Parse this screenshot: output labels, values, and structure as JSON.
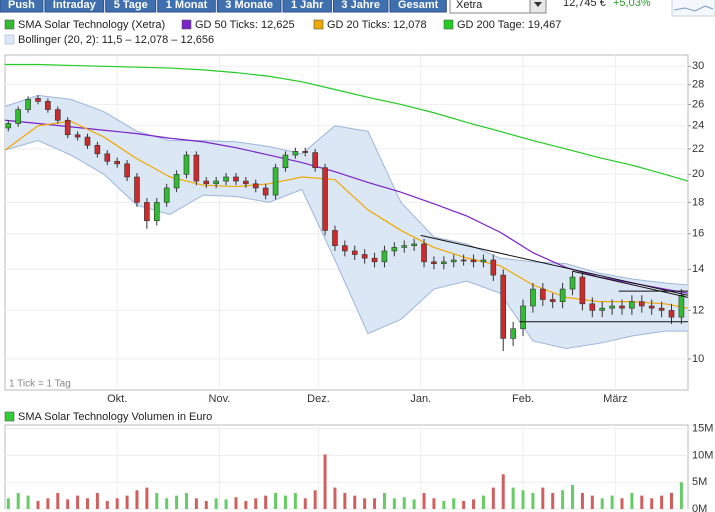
{
  "toolbar": {
    "buttons": [
      "Push",
      "Intraday",
      "5 Tage",
      "1 Monat",
      "3 Monate",
      "1 Jahr",
      "3 Jahre",
      "Gesamt"
    ],
    "exchange": "Xetra",
    "price": "12,745 €",
    "change": "+5,03%"
  },
  "chart_data": [
    {
      "type": "candlestick",
      "name": "SMA Solar Technology (Xetra)",
      "color": "#33bb33",
      "up_color": "#33bb33",
      "down_color": "#cc2b2b",
      "note": "1 Tick = 1 Tag",
      "x": [
        -33,
        -30,
        -27,
        -24,
        -21,
        -18,
        -15,
        -12,
        -9,
        -6,
        -3,
        0,
        3,
        6,
        9,
        12,
        15,
        18,
        21,
        24,
        27,
        30,
        33,
        36,
        39,
        42,
        45,
        48,
        51,
        54,
        57,
        60,
        63,
        66,
        69,
        72,
        75,
        78,
        81,
        84,
        87,
        90,
        93,
        96,
        99,
        102,
        105,
        108,
        111,
        114,
        117,
        120,
        123,
        126,
        129,
        132,
        135,
        138,
        141,
        144,
        147,
        150,
        153,
        156,
        159,
        162,
        165,
        168,
        171
      ],
      "open": [
        23.8,
        24.2,
        25.5,
        26.6,
        26.3,
        25.5,
        24.5,
        23.2,
        23,
        22.3,
        21.6,
        21,
        20.8,
        19.8,
        18,
        16.8,
        18,
        19,
        20,
        21.5,
        19.5,
        19.3,
        19.5,
        19.8,
        19.5,
        19.3,
        19,
        18.5,
        20.5,
        21.5,
        21.8,
        21.7,
        20.5,
        16.2,
        15.3,
        15,
        14.8,
        14.6,
        14.4,
        15,
        15.2,
        15.3,
        15.4,
        14.4,
        14.3,
        14.4,
        14.5,
        14.5,
        14.4,
        14.5,
        13.7,
        10.8,
        11.2,
        12.2,
        13,
        12.5,
        12.4,
        13,
        13.6,
        12.3,
        12,
        12.1,
        12.2,
        12.1,
        12.4,
        12.2,
        12.1,
        12,
        11.7
      ],
      "high": [
        24.5,
        25.8,
        26.8,
        26.9,
        26.6,
        25.8,
        24.8,
        23.5,
        23.3,
        22.6,
        21.9,
        21.3,
        21.1,
        20.1,
        18.3,
        18.3,
        19.3,
        20.3,
        21.8,
        21.8,
        19.8,
        19.8,
        20.1,
        20.1,
        19.8,
        19.6,
        19.3,
        20.8,
        21.8,
        22.1,
        22.1,
        22,
        20.8,
        16.5,
        15.6,
        15.3,
        15.1,
        14.9,
        15.3,
        15.5,
        15.6,
        15.7,
        15.7,
        14.7,
        14.7,
        14.8,
        14.8,
        14.8,
        14.8,
        14.8,
        14,
        11.5,
        12.5,
        13.3,
        13.3,
        12.8,
        13.3,
        13.9,
        13.9,
        12.6,
        12.4,
        12.5,
        12.5,
        12.7,
        12.7,
        12.5,
        12.4,
        12.3,
        13
      ],
      "low": [
        23.5,
        23.9,
        25.2,
        26,
        25.2,
        24.2,
        22.9,
        22.7,
        22,
        21.3,
        20.7,
        20.5,
        19.5,
        17.7,
        16.3,
        16.5,
        17.7,
        18.7,
        19.7,
        19.2,
        19,
        19,
        19.2,
        19.2,
        19,
        18.7,
        18.2,
        18.2,
        20.2,
        21.2,
        21.4,
        20.2,
        15.9,
        15,
        14.7,
        14.5,
        14.3,
        14.1,
        14.1,
        14.7,
        14.9,
        15,
        14.1,
        14,
        14,
        14.1,
        14.2,
        14.1,
        14.1,
        13.4,
        10.3,
        10.5,
        10.9,
        11.9,
        12.2,
        12.1,
        12.1,
        12.7,
        12,
        11.7,
        11.7,
        11.8,
        11.8,
        11.8,
        11.9,
        11.8,
        11.7,
        11.4,
        11.4
      ],
      "close": [
        24.2,
        25.5,
        26.5,
        26.3,
        25.5,
        24.5,
        23.2,
        23,
        22.3,
        21.6,
        21,
        20.8,
        19.8,
        18,
        16.8,
        18,
        19,
        20,
        21.5,
        19.5,
        19.3,
        19.5,
        19.8,
        19.5,
        19.3,
        19,
        18.5,
        20.5,
        21.5,
        21.8,
        21.7,
        20.5,
        16.2,
        15.3,
        15,
        14.8,
        14.6,
        14.4,
        15,
        15.2,
        15.3,
        15.4,
        14.4,
        14.3,
        14.4,
        14.5,
        14.5,
        14.4,
        14.5,
        13.7,
        10.8,
        11.2,
        12.2,
        13,
        12.5,
        12.4,
        13,
        13.6,
        12.3,
        12,
        12.1,
        12.2,
        12.1,
        12.4,
        12.2,
        12.1,
        12,
        11.7,
        12.7
      ],
      "band": {
        "name": "Bollinger (20, 2): 11,5 – 12,078 – 12,656",
        "color": "#dce7f5",
        "line_color": "#9db6da",
        "x": [
          -34,
          -24,
          -14,
          -4,
          6,
          16,
          26,
          36,
          46,
          56,
          66,
          76,
          86,
          96,
          106,
          116,
          126,
          136,
          146,
          156,
          166,
          173
        ],
        "upper": [
          25.8,
          26.9,
          26.5,
          25.3,
          23.5,
          22.7,
          22.7,
          22.6,
          22.2,
          21.6,
          24,
          23.5,
          18,
          15.8,
          15.4,
          14.6,
          14.4,
          14.3,
          13.8,
          13.5,
          13.3,
          13.2
        ],
        "lower": [
          21.9,
          22.7,
          21.5,
          20,
          17.8,
          17.2,
          18.5,
          18.4,
          18,
          18.9,
          14.5,
          11,
          11.6,
          13,
          13.4,
          12.8,
          10.7,
          10.4,
          10.6,
          10.9,
          11.1,
          11.1
        ]
      },
      "lines": [
        {
          "name": "GD 50 Ticks: 12,625",
          "color": "#7a22cc",
          "x": [
            -34,
            -24,
            -14,
            -4,
            6,
            16,
            26,
            36,
            46,
            56,
            66,
            76,
            86,
            96,
            106,
            116,
            126,
            136,
            146,
            156,
            166,
            173
          ],
          "values": [
            24.5,
            24.2,
            23.9,
            23.6,
            23.3,
            22.9,
            22.6,
            22.1,
            21.5,
            20.9,
            20.2,
            19.4,
            18.7,
            17.9,
            17.1,
            16.1,
            14.9,
            14.1,
            13.6,
            13.3,
            13,
            12.8
          ]
        },
        {
          "name": "GD 20 Ticks: 12,078",
          "color": "#f0a800",
          "x": [
            -34,
            -24,
            -14,
            -4,
            6,
            16,
            26,
            36,
            46,
            56,
            66,
            76,
            86,
            96,
            106,
            116,
            126,
            136,
            146,
            156,
            166,
            173
          ],
          "values": [
            21.9,
            24,
            24.4,
            23,
            21.2,
            19.8,
            19.2,
            19.1,
            19.3,
            19.8,
            19.6,
            17.5,
            16.2,
            15.2,
            14.6,
            14.2,
            13.2,
            12.6,
            12.4,
            12.4,
            12.3,
            12.1
          ]
        },
        {
          "name": "GD 200 Tage: 19,467",
          "color": "#22cc22",
          "x": [
            -34,
            -24,
            -14,
            -4,
            6,
            16,
            26,
            36,
            46,
            56,
            66,
            76,
            86,
            96,
            106,
            116,
            126,
            136,
            146,
            156,
            166,
            173
          ],
          "values": [
            30.2,
            30.2,
            30.1,
            30,
            29.9,
            29.8,
            29.6,
            29.3,
            28.9,
            28.3,
            27.5,
            26.7,
            26,
            25.2,
            24.3,
            23.5,
            22.7,
            22,
            21.3,
            20.7,
            20,
            19.5
          ]
        }
      ],
      "trendlines": [
        {
          "x": [
            92,
            173
          ],
          "values": [
            15.9,
            12.7
          ]
        },
        {
          "x": [
            138,
            173
          ],
          "values": [
            13.9,
            12.6
          ]
        },
        {
          "x": [
            122,
            173
          ],
          "values": [
            11.5,
            11.5
          ]
        },
        {
          "x": [
            152,
            173
          ],
          "values": [
            12.9,
            12.9
          ]
        }
      ],
      "xlim": [
        -34,
        173
      ],
      "xticks": [
        {
          "value": 0,
          "label": "Okt."
        },
        {
          "value": 31,
          "label": "Nov."
        },
        {
          "value": 61,
          "label": "Dez."
        },
        {
          "value": 92,
          "label": "Jan."
        },
        {
          "value": 123,
          "label": "Feb."
        },
        {
          "value": 151,
          "label": "März"
        }
      ],
      "ylim": [
        8.9,
        31.3
      ],
      "log": true,
      "grid": true,
      "yticks": [
        10,
        12,
        14,
        16,
        18,
        20,
        22,
        24,
        26,
        28,
        30
      ]
    },
    {
      "type": "bar",
      "title": "SMA Solar Technology Volumen in Euro",
      "color": "#3c3",
      "up_color": "#66cc66",
      "down_color": "#d06060",
      "x": [
        -33,
        -30,
        -27,
        -24,
        -21,
        -18,
        -15,
        -12,
        -9,
        -6,
        -3,
        0,
        3,
        6,
        9,
        12,
        15,
        18,
        21,
        24,
        27,
        30,
        33,
        36,
        39,
        42,
        45,
        48,
        51,
        54,
        57,
        60,
        63,
        66,
        69,
        72,
        75,
        78,
        81,
        84,
        87,
        90,
        93,
        96,
        99,
        102,
        105,
        108,
        111,
        114,
        117,
        120,
        123,
        126,
        129,
        132,
        135,
        138,
        141,
        144,
        147,
        150,
        153,
        156,
        159,
        162,
        165,
        168,
        171
      ],
      "values": [
        2,
        3,
        2.5,
        1.5,
        2,
        3,
        1.8,
        2.5,
        2,
        3,
        1.5,
        2,
        2.5,
        3.5,
        4,
        3,
        2,
        2.5,
        3,
        2,
        1.5,
        2,
        1.8,
        2.2,
        1.5,
        2,
        2.5,
        3,
        2.5,
        3,
        2,
        3.5,
        10.2,
        4,
        3,
        2.5,
        2,
        2,
        3,
        2,
        2.2,
        1.8,
        3,
        2,
        1.5,
        2,
        1.5,
        1.8,
        2.5,
        4,
        6.5,
        4,
        3.5,
        3,
        4,
        3,
        3.5,
        4.5,
        3,
        2.5,
        2,
        2.5,
        2,
        3,
        2.5,
        2,
        2.5,
        3,
        5
      ],
      "xlim": [
        -34,
        173
      ],
      "ylim": [
        0,
        15.7
      ],
      "grid": true,
      "yticks": [
        {
          "value": 0,
          "label": "0M"
        },
        {
          "value": 5,
          "label": "5M"
        },
        {
          "value": 10,
          "label": "10M"
        },
        {
          "value": 15,
          "label": "15M"
        }
      ]
    }
  ]
}
